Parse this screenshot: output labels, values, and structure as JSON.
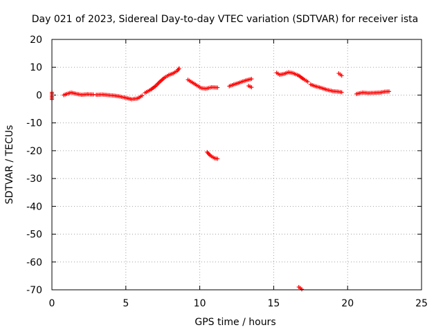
{
  "chart_data": {
    "type": "scatter",
    "title": "Day 021 of 2023, Sidereal Day-to-day VTEC variation (SDTVAR) for receiver ista",
    "xlabel": "GPS time / hours",
    "ylabel": "SDTVAR / TECUs",
    "xlim": [
      0,
      25
    ],
    "ylim": [
      -70,
      20
    ],
    "xticks": [
      0,
      5,
      10,
      15,
      20,
      25
    ],
    "yticks": [
      20,
      10,
      0,
      -10,
      -20,
      -30,
      -40,
      -50,
      -60,
      -70
    ],
    "grid": true,
    "colors": {
      "series": "#ff0000",
      "grid": "#a0a0a0",
      "axis": "#000000"
    },
    "series": [
      {
        "name": "SDTVAR",
        "marker": "plus",
        "segments": [
          [
            [
              0.0,
              1.0
            ],
            [
              0.0,
              0.0
            ],
            [
              0.0,
              -1.5
            ]
          ],
          [
            [
              0.8,
              0.0
            ],
            [
              1.0,
              0.4
            ],
            [
              1.3,
              0.9
            ],
            [
              1.6,
              0.5
            ],
            [
              2.0,
              0.1
            ],
            [
              2.4,
              0.3
            ],
            [
              2.8,
              0.2
            ]
          ],
          [
            [
              3.0,
              0.1
            ],
            [
              3.4,
              0.2
            ],
            [
              3.8,
              0.0
            ],
            [
              4.2,
              -0.2
            ],
            [
              4.6,
              -0.5
            ],
            [
              5.0,
              -1.0
            ],
            [
              5.4,
              -1.5
            ],
            [
              5.8,
              -1.2
            ],
            [
              6.1,
              -0.2
            ]
          ],
          [
            [
              6.3,
              0.8
            ],
            [
              6.7,
              2.0
            ],
            [
              7.0,
              3.2
            ],
            [
              7.3,
              4.8
            ],
            [
              7.6,
              6.2
            ],
            [
              7.9,
              7.2
            ],
            [
              8.2,
              7.8
            ],
            [
              8.5,
              8.8
            ],
            [
              8.6,
              9.6
            ]
          ],
          [
            [
              9.2,
              5.5
            ],
            [
              9.5,
              4.5
            ],
            [
              9.8,
              3.5
            ],
            [
              10.1,
              2.5
            ],
            [
              10.4,
              2.3
            ],
            [
              10.8,
              2.8
            ],
            [
              11.2,
              2.7
            ]
          ],
          [
            [
              10.5,
              -20.5
            ],
            [
              10.7,
              -21.7
            ],
            [
              11.0,
              -22.7
            ],
            [
              11.2,
              -22.9
            ]
          ],
          [
            [
              12.0,
              3.2
            ],
            [
              12.3,
              3.8
            ],
            [
              12.6,
              4.3
            ],
            [
              12.9,
              4.9
            ],
            [
              13.2,
              5.4
            ],
            [
              13.5,
              5.8
            ]
          ],
          [
            [
              13.3,
              3.3
            ],
            [
              13.5,
              2.8
            ]
          ],
          [
            [
              15.2,
              8.0
            ],
            [
              15.4,
              7.3
            ],
            [
              15.7,
              7.6
            ],
            [
              16.0,
              8.2
            ],
            [
              16.3,
              7.9
            ],
            [
              16.7,
              7.0
            ],
            [
              17.0,
              5.8
            ],
            [
              17.3,
              4.8
            ]
          ],
          [
            [
              17.5,
              3.8
            ],
            [
              17.8,
              3.2
            ],
            [
              18.2,
              2.6
            ],
            [
              18.6,
              1.9
            ],
            [
              19.0,
              1.4
            ],
            [
              19.4,
              1.2
            ],
            [
              19.6,
              1.0
            ]
          ],
          [
            [
              19.4,
              7.8
            ],
            [
              19.6,
              7.0
            ]
          ],
          [
            [
              20.6,
              0.4
            ],
            [
              21.0,
              0.9
            ],
            [
              21.4,
              0.7
            ],
            [
              21.8,
              0.8
            ],
            [
              22.2,
              0.9
            ],
            [
              22.5,
              1.2
            ],
            [
              22.8,
              1.3
            ]
          ],
          [
            [
              16.7,
              -69.0
            ],
            [
              16.9,
              -69.8
            ]
          ]
        ]
      }
    ]
  }
}
